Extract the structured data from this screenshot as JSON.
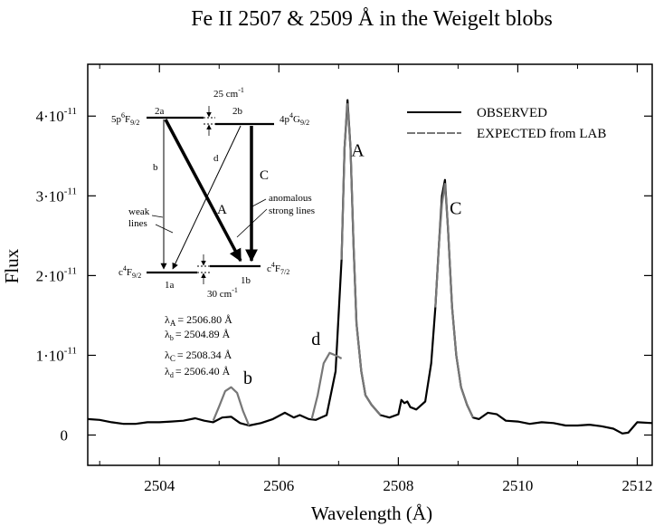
{
  "chart_data": {
    "type": "line",
    "title": "Fe II 2507 & 2509 Å in the Weigelt blobs",
    "xlabel": "Wavelength (Å)",
    "ylabel": "Flux",
    "xlim": [
      2502.8,
      2512.25
    ],
    "ylim": [
      -3.8e-12,
      4.65e-11
    ],
    "x_ticks": [
      2504,
      2506,
      2508,
      2510,
      2512
    ],
    "x_tick_labels": [
      "2504",
      "2506",
      "2508",
      "2510",
      "2512"
    ],
    "y_ticks": [
      0,
      1e-11,
      2e-11,
      3e-11,
      4e-11
    ],
    "y_tick_labels": [
      {
        "base": "0",
        "exp": ""
      },
      {
        "base": "1·10",
        "exp": "-11"
      },
      {
        "base": "2·10",
        "exp": "-11"
      },
      {
        "base": "3·10",
        "exp": "-11"
      },
      {
        "base": "4·10",
        "exp": "-11"
      }
    ],
    "legend_position": "top-right",
    "series": [
      {
        "name": "OBSERVED",
        "color": "#000000",
        "x": [
          2502.8,
          2503.0,
          2503.2,
          2503.4,
          2503.6,
          2503.8,
          2504.0,
          2504.2,
          2504.4,
          2504.6,
          2504.75,
          2504.9,
          2505.05,
          2505.2,
          2505.35,
          2505.5,
          2505.7,
          2505.9,
          2506.1,
          2506.25,
          2506.35,
          2506.5,
          2506.62,
          2506.8,
          2506.95,
          2507.05,
          2507.1,
          2507.15,
          2507.2,
          2507.25,
          2507.3,
          2507.38,
          2507.45,
          2507.55,
          2507.7,
          2507.85,
          2508.0,
          2508.05,
          2508.1,
          2508.15,
          2508.2,
          2508.3,
          2508.45,
          2508.55,
          2508.62,
          2508.68,
          2508.73,
          2508.78,
          2508.83,
          2508.9,
          2508.97,
          2509.05,
          2509.15,
          2509.25,
          2509.35,
          2509.5,
          2509.65,
          2509.8,
          2510.0,
          2510.2,
          2510.4,
          2510.6,
          2510.8,
          2511.0,
          2511.2,
          2511.4,
          2511.6,
          2511.75,
          2511.85,
          2512.0,
          2512.25
        ],
        "y": [
          2e-12,
          1.9e-12,
          1.6e-12,
          1.4e-12,
          1.4e-12,
          1.6e-12,
          1.6e-12,
          1.7e-12,
          1.8e-12,
          2.1e-12,
          1.8e-12,
          1.6e-12,
          2.2e-12,
          2.3e-12,
          1.5e-12,
          1.2e-12,
          1.5e-12,
          2e-12,
          2.8e-12,
          2.2e-12,
          2.5e-12,
          2e-12,
          1.9e-12,
          2.5e-12,
          8e-12,
          2.2e-11,
          3.6e-11,
          4.2e-11,
          3.6e-11,
          2.4e-11,
          1.4e-11,
          8e-12,
          5e-12,
          3.8e-12,
          2.5e-12,
          2.2e-12,
          2.6e-12,
          4.4e-12,
          4e-12,
          4.2e-12,
          3.5e-12,
          3.2e-12,
          4.2e-12,
          9e-12,
          1.6e-11,
          2.4e-11,
          3e-11,
          3.2e-11,
          2.6e-11,
          1.6e-11,
          1e-11,
          6e-12,
          3.8e-12,
          2.2e-12,
          2e-12,
          2.8e-12,
          2.6e-12,
          1.8e-12,
          1.7e-12,
          1.4e-12,
          1.6e-12,
          1.5e-12,
          1.2e-12,
          1.2e-12,
          1.3e-12,
          1.1e-12,
          8e-13,
          2e-13,
          3e-13,
          1.6e-12,
          1.5e-12
        ]
      },
      {
        "name": "EXPECTED from LAB",
        "color": "#777777",
        "segments": [
          {
            "x": [
              2504.9,
              2505.0,
              2505.1,
              2505.2,
              2505.3,
              2505.4,
              2505.5
            ],
            "y": [
              1.8e-12,
              3.6e-12,
              5.5e-12,
              6e-12,
              5.3e-12,
              3e-12,
              1.2e-12
            ]
          },
          {
            "x": [
              2506.55,
              2506.65,
              2506.75,
              2506.85,
              2506.95,
              2507.05
            ],
            "y": [
              2e-12,
              5e-12,
              9e-12,
              1.03e-11,
              1e-11,
              9.6e-12
            ]
          },
          {
            "x": [
              2507.05,
              2507.1,
              2507.15,
              2507.2,
              2507.25,
              2507.3,
              2507.38,
              2507.45,
              2507.55,
              2507.7
            ],
            "y": [
              2.2e-11,
              3.6e-11,
              4.15e-11,
              3.6e-11,
              2.4e-11,
              1.4e-11,
              8e-12,
              5e-12,
              3.8e-12,
              2.5e-12
            ]
          },
          {
            "x": [
              2508.62,
              2508.68,
              2508.73,
              2508.78,
              2508.83,
              2508.9,
              2508.97,
              2509.05,
              2509.15,
              2509.25
            ],
            "y": [
              1.6e-11,
              2.4e-11,
              2.9e-11,
              3.15e-11,
              2.6e-11,
              1.6e-11,
              1e-11,
              6e-12,
              3.8e-12,
              2.2e-12
            ]
          }
        ]
      }
    ],
    "annotations": [
      {
        "text": "A",
        "x": 2507.32,
        "y": 3.5e-11
      },
      {
        "text": "C",
        "x": 2508.96,
        "y": 2.77e-11
      },
      {
        "text": "d",
        "x": 2506.62,
        "y": 1.13e-11
      },
      {
        "text": "b",
        "x": 2505.48,
        "y": 6.4e-12
      }
    ],
    "wavelengths": [
      {
        "sym": "λ",
        "sub": "A",
        "val": "= 2506.80 Å"
      },
      {
        "sym": "λ",
        "sub": "b",
        "val": "= 2504.89 Å"
      },
      {
        "sym": "λ",
        "sub": "C",
        "val": "= 2508.34 Å"
      },
      {
        "sym": "λ",
        "sub": "d",
        "val": "= 2506.40 Å"
      }
    ],
    "level_diagram": {
      "upper_left": {
        "base": "5p",
        "sup": "6",
        "mid": "F",
        "sub": "9/2"
      },
      "upper_right": {
        "base": "4p",
        "sup": "4",
        "mid": "G",
        "sub": "9/2"
      },
      "lower_left": {
        "base": "c",
        "sup": "4",
        "mid": "F",
        "sub": "9/2"
      },
      "lower_right": {
        "base": "c",
        "sup": "4",
        "mid": "F",
        "sub": "7/2"
      },
      "level_2a": "2a",
      "level_2b": "2b",
      "level_1a": "1a",
      "level_1b": "1b",
      "upper_splitting": "25 cm",
      "upper_splitting_exp": "-1",
      "lower_splitting": "30 cm",
      "lower_splitting_exp": "-1",
      "transition_b": "b",
      "transition_d": "d",
      "transition_A": "A",
      "transition_C": "C",
      "weak_label_1": "weak",
      "weak_label_2": "lines",
      "strong_label_1": "anomalous",
      "strong_label_2": "strong lines"
    }
  }
}
